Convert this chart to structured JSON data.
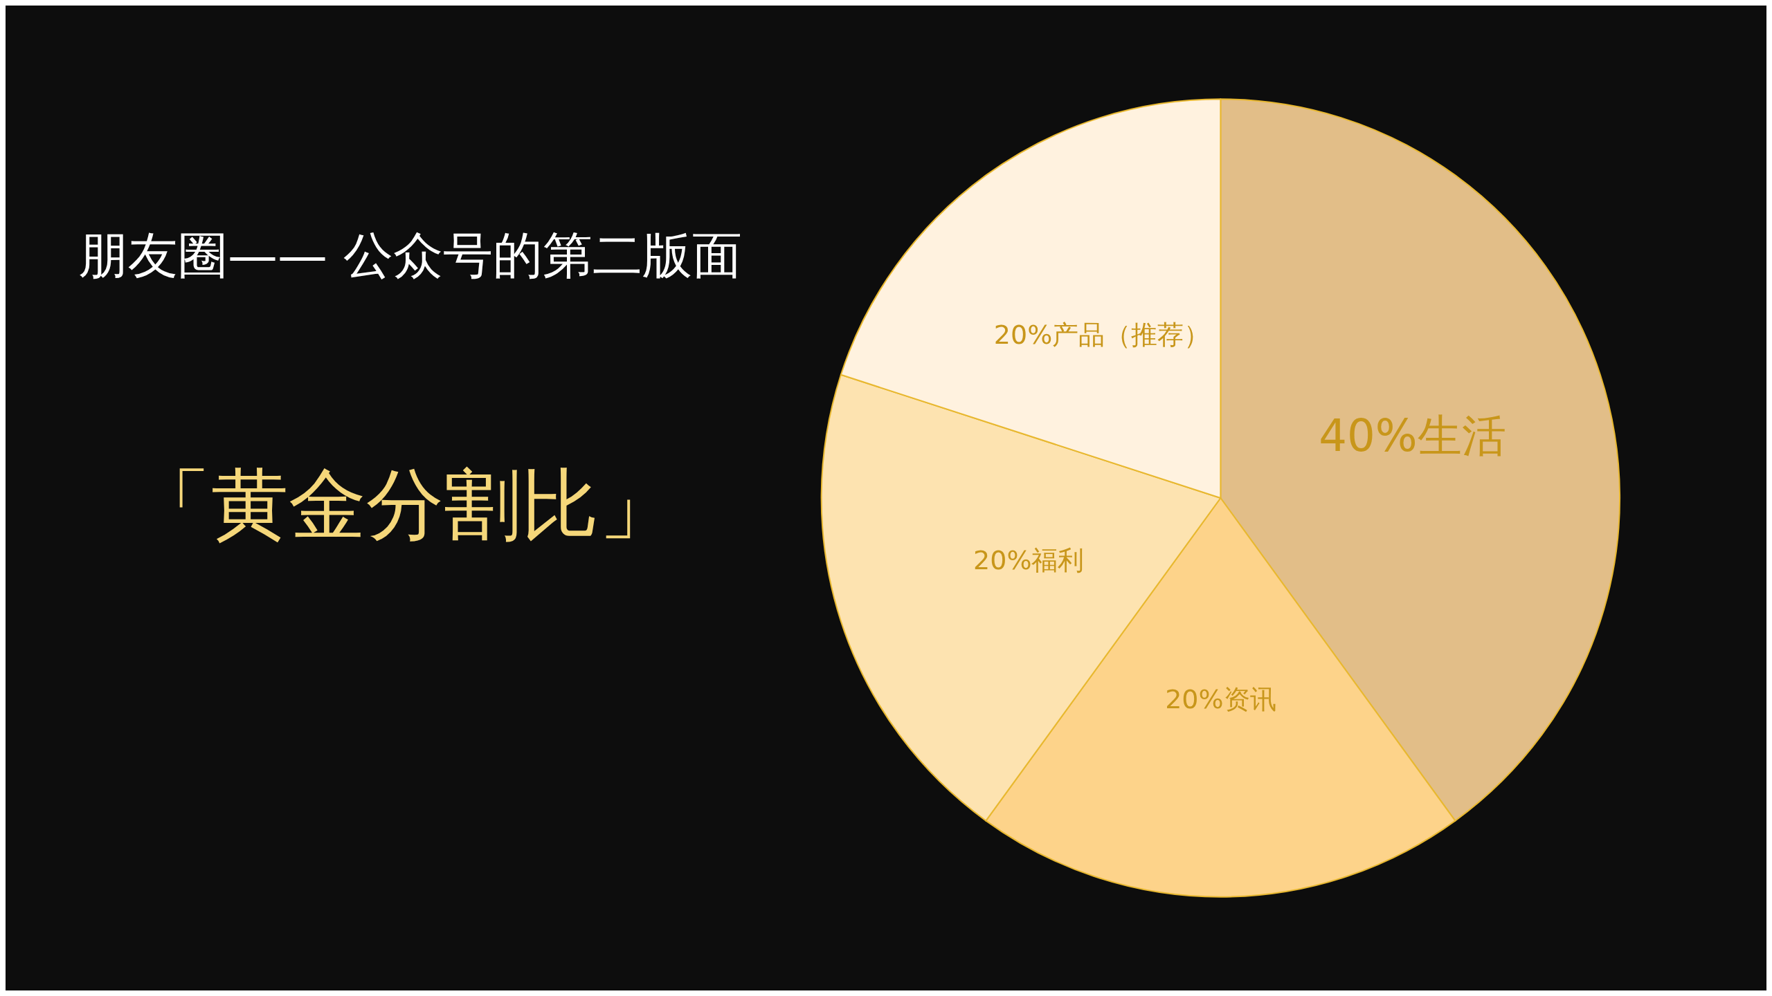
{
  "chart_data": {
    "type": "pie",
    "title": "朋友圈—— 公众号的第二版面",
    "subtitle": "「黄金分割比」",
    "categories": [
      "40%生活",
      "20%资讯",
      "20%福利",
      "20%产品（推荐）"
    ],
    "values": [
      40,
      20,
      20,
      20
    ],
    "colors": [
      "#e2be88",
      "#fdd38a",
      "#fde3b0",
      "#fff2df"
    ],
    "legend": false
  }
}
